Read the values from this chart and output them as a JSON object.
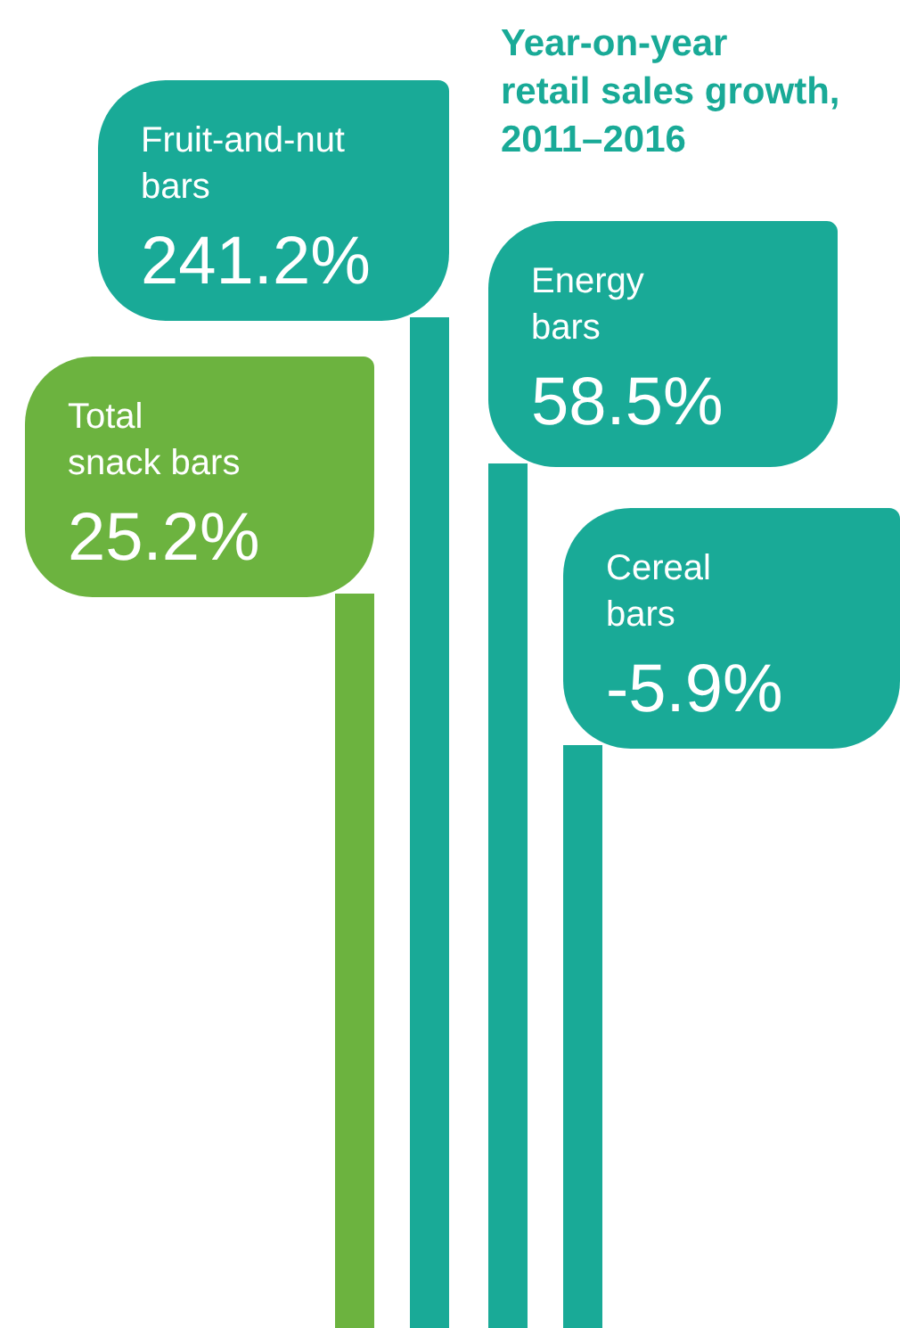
{
  "chart_data": {
    "type": "other",
    "title": "Year-on-year retail sales growth, 2011–2016",
    "categories": [
      "Total snack bars",
      "Fruit-and-nut bars",
      "Energy bars",
      "Cereal bars"
    ],
    "values": [
      25.2,
      241.2,
      58.5,
      -5.9
    ],
    "value_labels": [
      "25.2%",
      "241.2%",
      "58.5%",
      "-5.9%"
    ],
    "colors": [
      "#6cb33f",
      "#19aa97",
      "#19aa97",
      "#19aa97"
    ]
  }
}
